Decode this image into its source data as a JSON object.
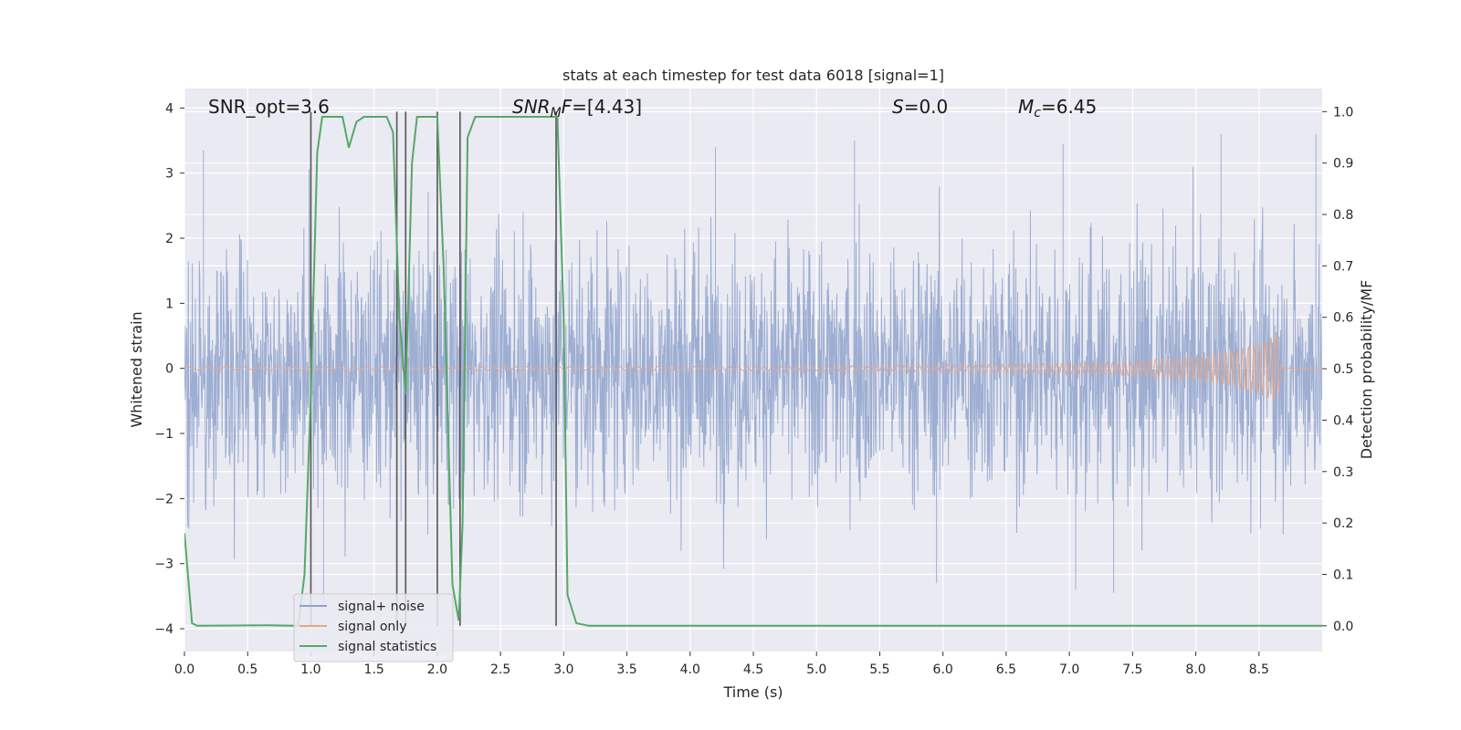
{
  "chart_data": {
    "type": "line",
    "title": "stats at each timestep for test data 6018 [signal=1]",
    "xlabel": "Time (s)",
    "ylabel_left": "Whitened strain",
    "ylabel_right": "Detection probability/MF",
    "xlim": [
      0.0,
      9.0
    ],
    "ylim_left": [
      -4.35,
      4.3
    ],
    "ylim_right": [
      -0.05,
      1.045
    ],
    "x_ticks": [
      "0.0",
      "0.5",
      "1.0",
      "1.5",
      "2.0",
      "2.5",
      "3.0",
      "3.5",
      "4.0",
      "4.5",
      "5.0",
      "5.5",
      "6.0",
      "6.5",
      "7.0",
      "7.5",
      "8.0",
      "8.5"
    ],
    "y_left_ticks": [
      "4",
      "3",
      "2",
      "1",
      "0",
      "−1",
      "−2",
      "−3",
      "−4"
    ],
    "y_right_ticks": [
      "1.0",
      "0.9",
      "0.8",
      "0.7",
      "0.6",
      "0.5",
      "0.4",
      "0.3",
      "0.2",
      "0.1",
      "0.0"
    ],
    "grid": true,
    "annotations": {
      "snr_opt": "SNR_opt=3.6",
      "snr_mf_main": "SNR",
      "snr_mf_sub": "M",
      "snr_mf_rest": "F",
      "snr_mf_value": "=[4.43]",
      "s_sym": "S",
      "s_value": "=0.0",
      "mc_sym": "M",
      "mc_sub": "c",
      "mc_value": "=6.45"
    },
    "legend": {
      "placement": "lower-left",
      "items": [
        {
          "label": "signal+ noise",
          "color": "#8fa3cc"
        },
        {
          "label": "signal only",
          "color": "#e3a68a"
        },
        {
          "label": "signal statistics",
          "color": "#55a868"
        }
      ]
    },
    "series": [
      {
        "name": "signal+ noise",
        "color": "#8fa3cc",
        "envelope_amplitude": 2.2,
        "peaks": [
          [
            0.15,
            3.35
          ],
          [
            1.1,
            -3.6
          ],
          [
            4.2,
            3.4
          ],
          [
            5.3,
            3.5
          ],
          [
            5.95,
            -3.3
          ],
          [
            6.95,
            3.45
          ],
          [
            7.05,
            -3.4
          ],
          [
            7.35,
            -3.45
          ],
          [
            8.2,
            3.6
          ],
          [
            8.95,
            3.6
          ]
        ]
      },
      {
        "name": "signal only",
        "color": "#e3a68a",
        "points": [
          [
            0.0,
            0.02
          ],
          [
            4.5,
            0.03
          ],
          [
            6.0,
            0.05
          ],
          [
            7.0,
            0.08
          ],
          [
            7.5,
            0.11
          ],
          [
            8.0,
            0.18
          ],
          [
            8.3,
            0.27
          ],
          [
            8.55,
            0.42
          ],
          [
            8.65,
            0.55
          ],
          [
            8.68,
            0.0
          ],
          [
            9.0,
            0.0
          ]
        ]
      },
      {
        "name": "signal statistics",
        "axis": "right",
        "color": "#55a868",
        "points": [
          [
            0.0,
            0.18
          ],
          [
            0.06,
            0.005
          ],
          [
            0.1,
            0.0
          ],
          [
            0.65,
            0.001
          ],
          [
            0.9,
            0.0
          ],
          [
            0.95,
            0.1
          ],
          [
            1.0,
            0.45
          ],
          [
            1.05,
            0.92
          ],
          [
            1.09,
            0.99
          ],
          [
            1.25,
            0.99
          ],
          [
            1.3,
            0.93
          ],
          [
            1.36,
            0.98
          ],
          [
            1.42,
            0.99
          ],
          [
            1.6,
            0.99
          ],
          [
            1.65,
            0.96
          ],
          [
            1.7,
            0.6
          ],
          [
            1.75,
            0.45
          ],
          [
            1.8,
            0.9
          ],
          [
            1.84,
            0.99
          ],
          [
            2.0,
            0.99
          ],
          [
            2.05,
            0.7
          ],
          [
            2.12,
            0.08
          ],
          [
            2.17,
            0.01
          ],
          [
            2.2,
            0.2
          ],
          [
            2.24,
            0.95
          ],
          [
            2.3,
            0.99
          ],
          [
            2.95,
            0.99
          ],
          [
            3.0,
            0.6
          ],
          [
            3.03,
            0.06
          ],
          [
            3.1,
            0.005
          ],
          [
            3.2,
            0.0
          ],
          [
            9.0,
            0.0
          ]
        ]
      }
    ],
    "vertical_markers_x": [
      1.0,
      1.68,
      1.75,
      2.0,
      2.18,
      2.94
    ]
  }
}
